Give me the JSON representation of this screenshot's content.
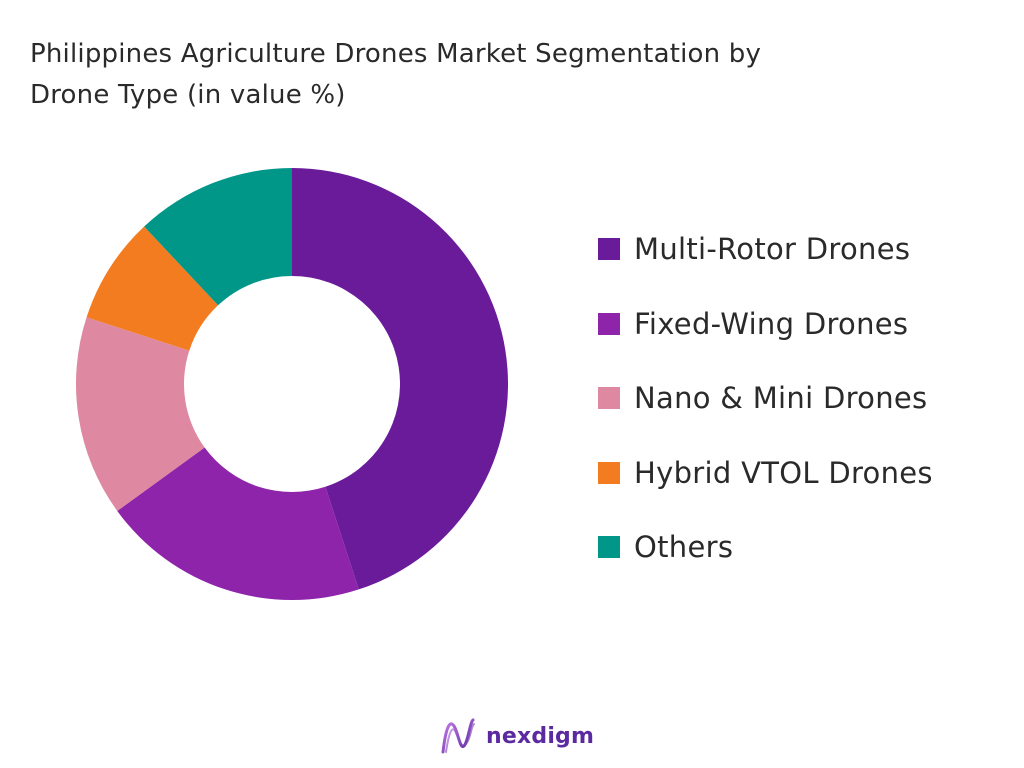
{
  "title_lines": [
    "Philippines Agriculture Drones Market Segmentation by",
    "Drone Type (in value %)"
  ],
  "brand": {
    "name": "nexdigm",
    "logo_icon": "nexdigm-wave-logo-icon",
    "logo_color": "#5b2aa0"
  },
  "chart_data": {
    "type": "pie",
    "subtype": "donut",
    "title": "Philippines Agriculture Drones Market Segmentation by Drone Type (in value %)",
    "legend_position": "right",
    "series": [
      {
        "name": "Multi-Rotor Drones",
        "value": 45,
        "color": "#6a1b9a"
      },
      {
        "name": "Fixed-Wing Drones",
        "value": 20,
        "color": "#8e24aa"
      },
      {
        "name": "Nano & Mini Drones",
        "value": 15,
        "color": "#de89a1"
      },
      {
        "name": "Hybrid VTOL Drones",
        "value": 8,
        "color": "#f47c20"
      },
      {
        "name": "Others",
        "value": 12,
        "color": "#009688"
      }
    ]
  }
}
